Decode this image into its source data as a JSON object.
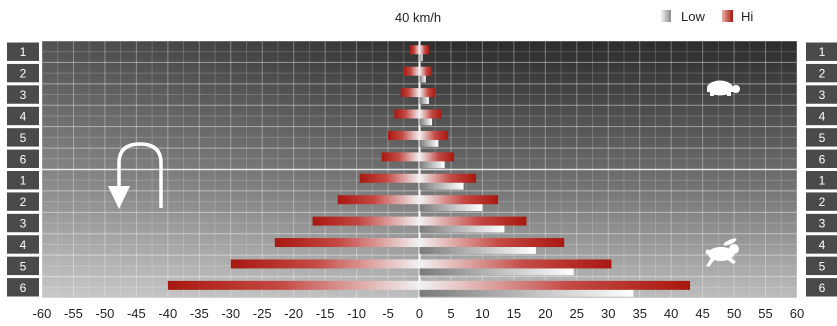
{
  "chart_data": {
    "type": "bar",
    "orientation": "horizontal",
    "title": "40 km/h",
    "legend": {
      "placement": "top-right",
      "entries": [
        {
          "label": "Low",
          "color": "#b0b0b0"
        },
        {
          "label": "Hi",
          "color": "#b3221c"
        }
      ]
    },
    "colors": {
      "low": "#9a9a9a",
      "hi": "#b3221c",
      "background_top": "#2f2f2f",
      "background_bottom": "#b8b8b8",
      "left_half_tint": "#ffffff"
    },
    "xlim": [
      -60,
      60
    ],
    "xticks": [
      -60,
      -55,
      -50,
      -45,
      -40,
      -35,
      -30,
      -25,
      -20,
      -15,
      -10,
      -5,
      0,
      5,
      10,
      15,
      20,
      25,
      30,
      35,
      40,
      45,
      50,
      55,
      60
    ],
    "grid": true,
    "categories_left": [
      "1",
      "2",
      "3",
      "4",
      "5",
      "6",
      "1",
      "2",
      "3",
      "4",
      "5",
      "6"
    ],
    "categories_right": [
      "1",
      "2",
      "3",
      "4",
      "5",
      "6",
      "1",
      "2",
      "3",
      "4",
      "5",
      "6"
    ],
    "groups": [
      {
        "name": "Low",
        "rows": 6
      },
      {
        "name": "Hi",
        "rows": 6
      }
    ],
    "series": [
      {
        "name": "Low",
        "values": [
          [
            0,
            0.5
          ],
          [
            0,
            1
          ],
          [
            0,
            1.5
          ],
          [
            0,
            2
          ],
          [
            0,
            3
          ],
          [
            0,
            4
          ],
          [
            0,
            7
          ],
          [
            0,
            10
          ],
          [
            0,
            13.5
          ],
          [
            0,
            18.5
          ],
          [
            0,
            24.5
          ],
          [
            0,
            34
          ]
        ]
      },
      {
        "name": "Hi",
        "values": [
          [
            -1.5,
            1.5
          ],
          [
            -2.5,
            2
          ],
          [
            -3,
            2.5
          ],
          [
            -4,
            3.5
          ],
          [
            -5,
            4.5
          ],
          [
            -6,
            5.5
          ],
          [
            -9.5,
            9
          ],
          [
            -13,
            12.5
          ],
          [
            -17,
            17
          ],
          [
            -23,
            23
          ],
          [
            -30,
            30.5
          ],
          [
            -40,
            43
          ]
        ]
      }
    ],
    "icons": {
      "slow": "turtle-icon",
      "fast": "hare-icon",
      "reverse": "u-turn-arrow-icon"
    }
  }
}
